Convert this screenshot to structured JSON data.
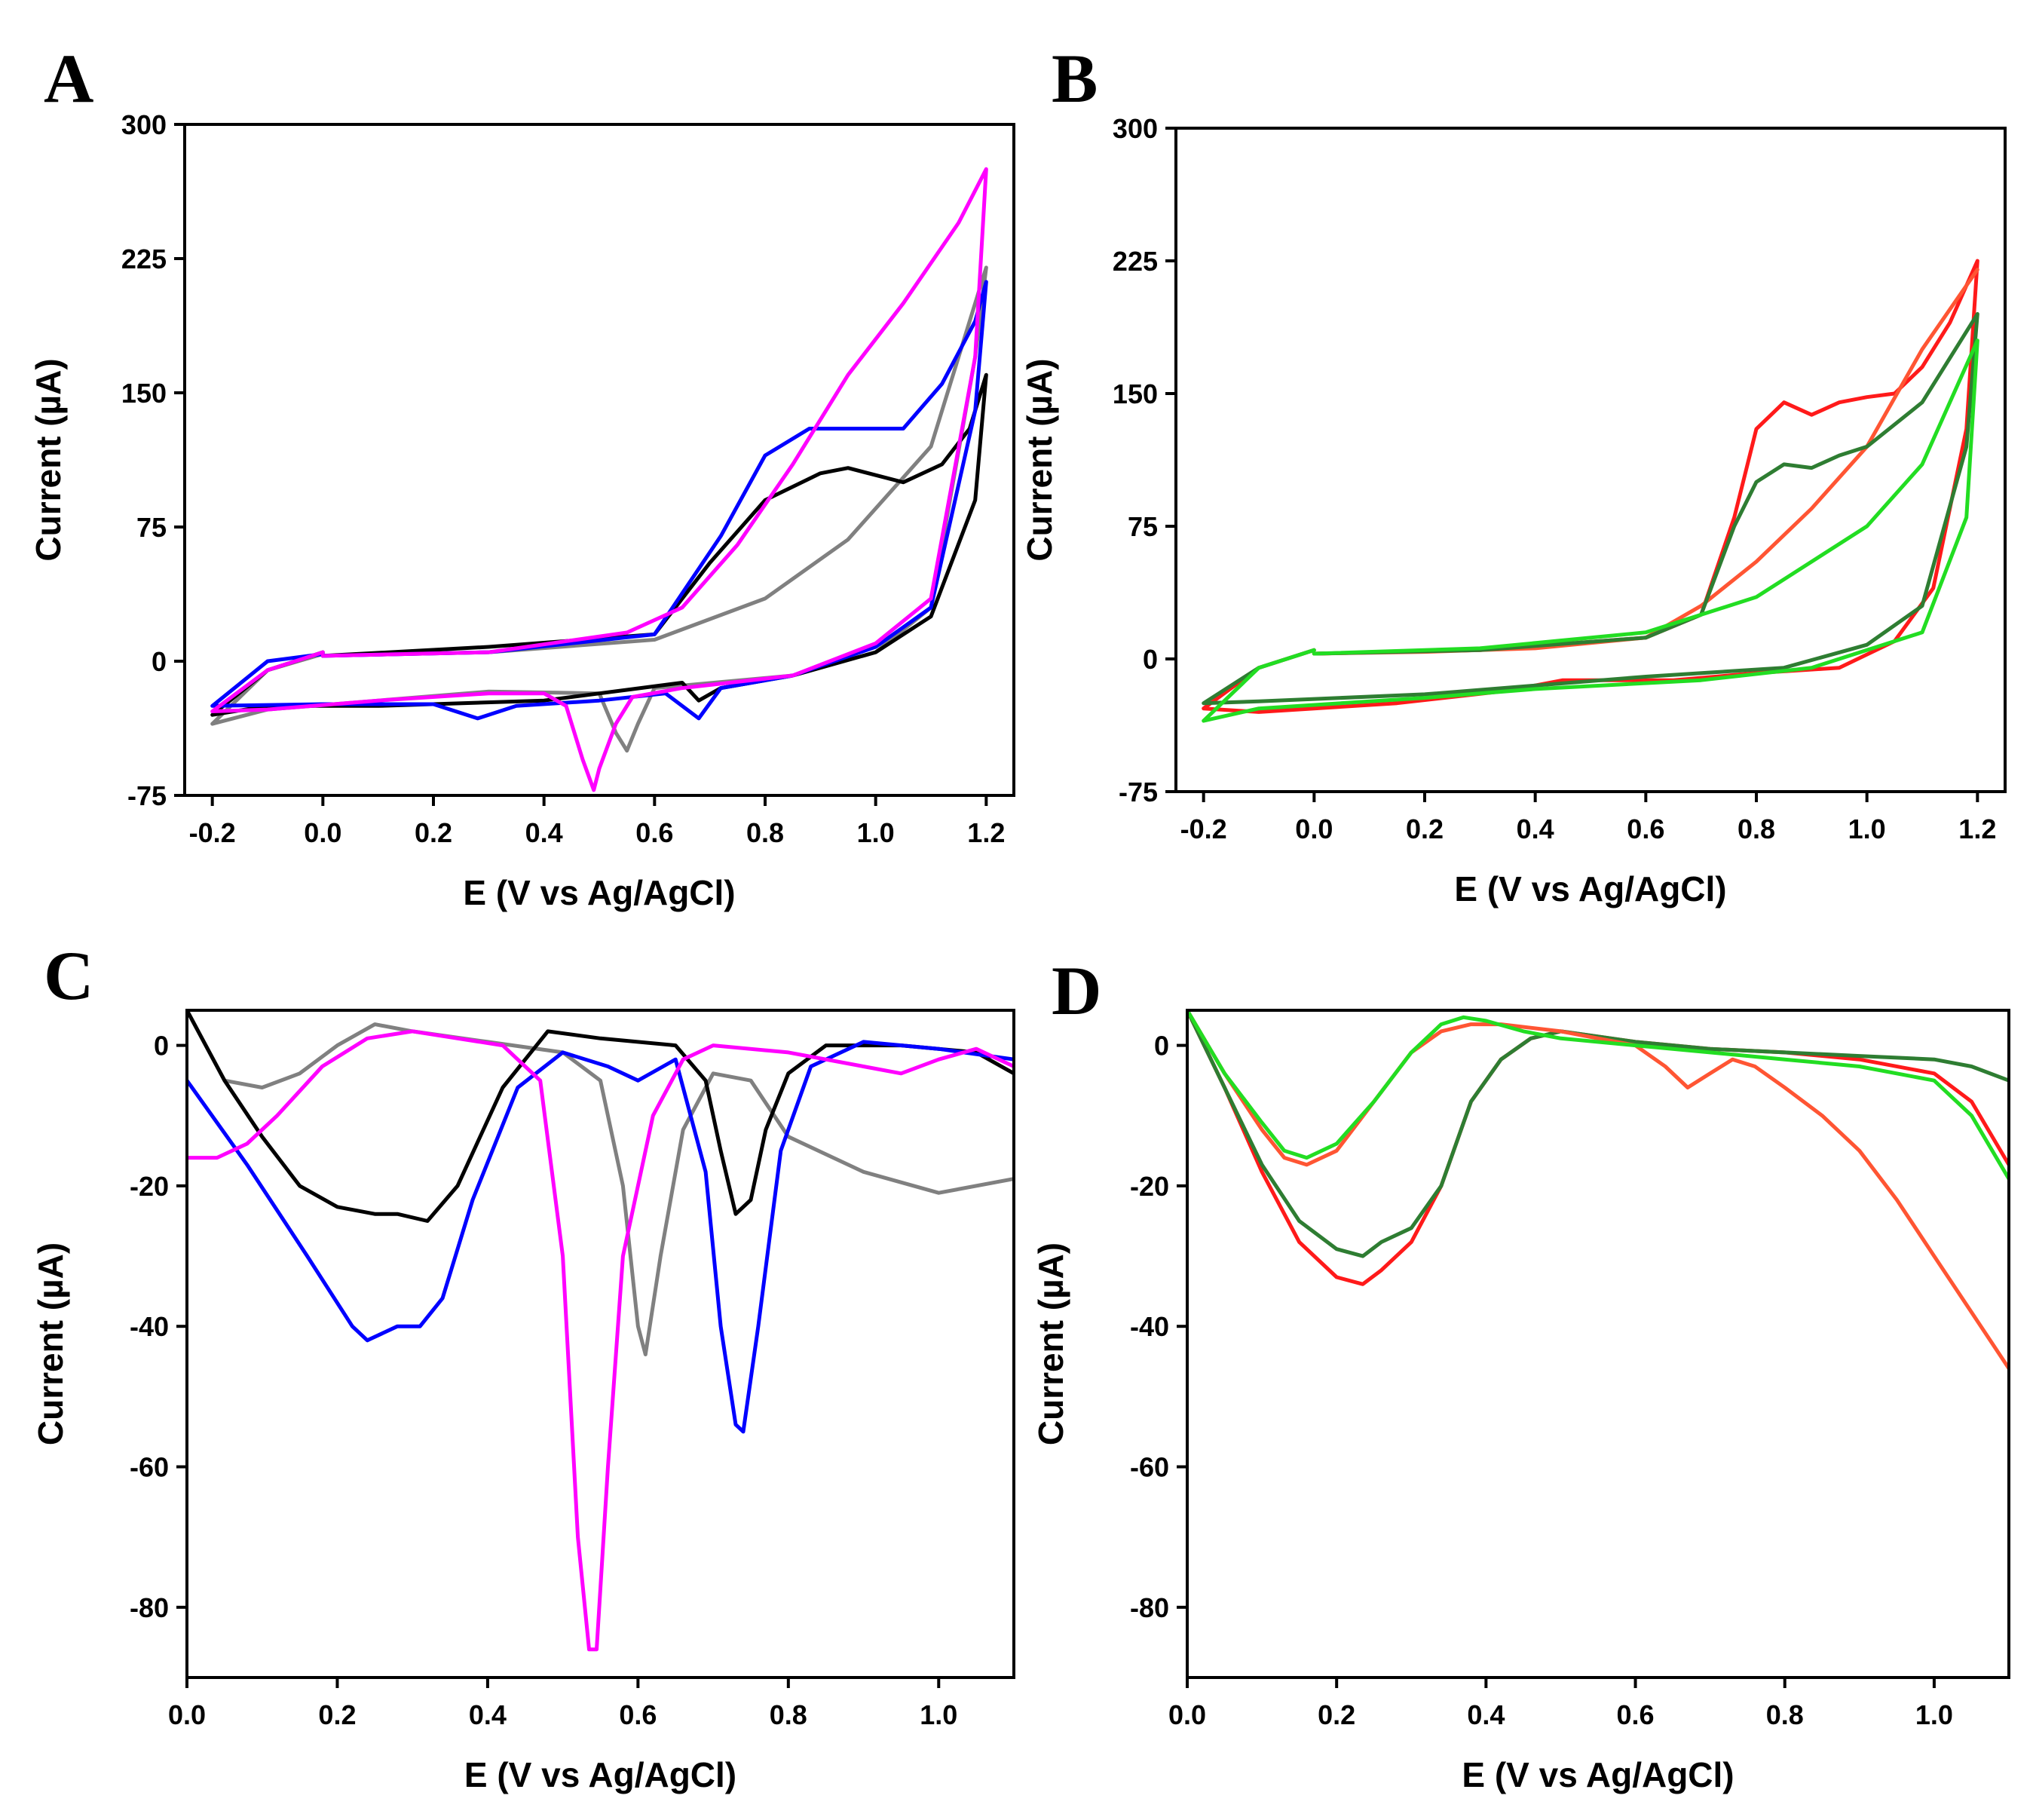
{
  "chart_data": [
    {
      "id": "A",
      "panel_label": "A",
      "type": "line",
      "xlabel": "E (V vs Ag/AgCl)",
      "ylabel": "Current (µA)",
      "xlim": [
        -0.25,
        1.25
      ],
      "ylim": [
        -75,
        300
      ],
      "xticks": [
        -0.2,
        0.0,
        0.2,
        0.4,
        0.6,
        0.8,
        1.0,
        1.2
      ],
      "xtick_labels": [
        "-0.2",
        "0.0",
        "0.2",
        "0.4",
        "0.6",
        "0.8",
        "1.0",
        "1.2"
      ],
      "yticks": [
        -75,
        0,
        75,
        150,
        225,
        300
      ],
      "ytick_labels": [
        "-75",
        "0",
        "75",
        "150",
        "225",
        "300"
      ],
      "series": [
        {
          "name": "gray",
          "color": "#808080",
          "x": [
            0.0,
            0.3,
            0.6,
            0.8,
            0.95,
            1.1,
            1.2,
            1.18,
            1.1,
            1.0,
            0.85,
            0.6,
            0.57,
            0.55,
            0.53,
            0.5,
            0.3,
            0.1,
            -0.1,
            -0.2,
            -0.1,
            0.0
          ],
          "y": [
            3,
            5,
            12,
            35,
            68,
            120,
            220,
            170,
            30,
            5,
            -8,
            -15,
            -35,
            -50,
            -40,
            -18,
            -17,
            -22,
            -27,
            -35,
            -5,
            4
          ]
        },
        {
          "name": "black",
          "color": "#000000",
          "x": [
            0.0,
            0.3,
            0.6,
            0.7,
            0.8,
            0.9,
            0.95,
            1.05,
            1.12,
            1.17,
            1.2,
            1.18,
            1.1,
            1.0,
            0.85,
            0.72,
            0.68,
            0.65,
            0.4,
            0.1,
            -0.1,
            -0.2,
            -0.1,
            0.0
          ],
          "y": [
            3,
            8,
            15,
            55,
            90,
            105,
            108,
            100,
            110,
            130,
            160,
            90,
            25,
            5,
            -8,
            -15,
            -22,
            -12,
            -22,
            -25,
            -25,
            -30,
            -5,
            5
          ]
        },
        {
          "name": "blue",
          "color": "#0000ff",
          "x": [
            0.0,
            0.3,
            0.6,
            0.72,
            0.8,
            0.88,
            0.95,
            1.05,
            1.12,
            1.18,
            1.2,
            1.18,
            1.1,
            1.0,
            0.85,
            0.72,
            0.68,
            0.62,
            0.5,
            0.35,
            0.28,
            0.2,
            0.0,
            -0.2,
            -0.1,
            0.0
          ],
          "y": [
            3,
            5,
            15,
            70,
            115,
            130,
            130,
            130,
            155,
            190,
            212,
            140,
            30,
            8,
            -8,
            -15,
            -32,
            -18,
            -22,
            -25,
            -32,
            -24,
            -24,
            -25,
            0,
            4
          ]
        },
        {
          "name": "magenta",
          "color": "#ff00ff",
          "x": [
            0.0,
            0.3,
            0.55,
            0.65,
            0.75,
            0.85,
            0.95,
            1.05,
            1.15,
            1.2,
            1.18,
            1.1,
            1.0,
            0.85,
            0.65,
            0.56,
            0.53,
            0.5,
            0.49,
            0.47,
            0.44,
            0.4,
            0.3,
            0.1,
            -0.1,
            -0.2,
            -0.1,
            0.0
          ],
          "y": [
            3,
            5,
            16,
            30,
            65,
            110,
            160,
            200,
            245,
            275,
            170,
            35,
            10,
            -8,
            -15,
            -20,
            -35,
            -60,
            -72,
            -55,
            -25,
            -18,
            -18,
            -22,
            -27,
            -28,
            -5,
            5
          ]
        }
      ]
    },
    {
      "id": "B",
      "panel_label": "B",
      "type": "line",
      "xlabel": "E (V vs Ag/AgCl)",
      "ylabel": "Current (µA)",
      "xlim": [
        -0.25,
        1.25
      ],
      "ylim": [
        -75,
        300
      ],
      "xticks": [
        -0.2,
        0.0,
        0.2,
        0.4,
        0.6,
        0.8,
        1.0,
        1.2
      ],
      "xtick_labels": [
        "-0.2",
        "0.0",
        "0.2",
        "0.4",
        "0.6",
        "0.8",
        "1.0",
        "1.2"
      ],
      "yticks": [
        -75,
        0,
        75,
        150,
        225,
        300
      ],
      "ytick_labels": [
        "-75",
        "0",
        "75",
        "150",
        "225",
        "300"
      ],
      "series": [
        {
          "name": "red",
          "color": "#ff1a1a",
          "x": [
            0.0,
            0.3,
            0.6,
            0.7,
            0.76,
            0.8,
            0.85,
            0.9,
            0.95,
            1.0,
            1.05,
            1.1,
            1.15,
            1.2,
            1.18,
            1.12,
            1.05,
            0.95,
            0.8,
            0.65,
            0.55,
            0.45,
            0.35,
            0.15,
            -0.1,
            -0.2,
            -0.1,
            0.0
          ],
          "y": [
            3,
            5,
            12,
            25,
            80,
            130,
            145,
            138,
            145,
            148,
            150,
            165,
            190,
            225,
            130,
            40,
            10,
            -5,
            -8,
            -12,
            -12,
            -12,
            -18,
            -25,
            -30,
            -28,
            -5,
            5
          ]
        },
        {
          "name": "orange-red",
          "color": "#ff5533",
          "x": [
            1.2,
            1.1,
            1.0,
            0.9,
            0.8,
            0.7,
            0.6,
            0.4,
            0.2,
            0.0
          ],
          "y": [
            220,
            175,
            120,
            85,
            55,
            30,
            12,
            6,
            4,
            3
          ]
        },
        {
          "name": "dark-green",
          "color": "#2e7d32",
          "x": [
            0.0,
            0.3,
            0.6,
            0.7,
            0.76,
            0.8,
            0.85,
            0.9,
            0.95,
            1.0,
            1.1,
            1.2,
            1.18,
            1.1,
            1.0,
            0.85,
            0.6,
            0.4,
            0.2,
            -0.1,
            -0.2,
            -0.1,
            0.0
          ],
          "y": [
            3,
            5,
            12,
            25,
            75,
            100,
            110,
            108,
            115,
            120,
            145,
            195,
            120,
            30,
            8,
            -5,
            -10,
            -15,
            -20,
            -24,
            -25,
            -5,
            5
          ]
        },
        {
          "name": "green",
          "color": "#22dd22",
          "x": [
            0.0,
            0.3,
            0.6,
            0.8,
            1.0,
            1.1,
            1.2,
            1.18,
            1.1,
            0.9,
            0.7,
            0.4,
            0.2,
            -0.1,
            -0.2,
            -0.1,
            0.0
          ],
          "y": [
            3,
            6,
            15,
            35,
            75,
            110,
            180,
            80,
            15,
            -5,
            -12,
            -17,
            -22,
            -28,
            -35,
            -5,
            5
          ]
        }
      ]
    },
    {
      "id": "C",
      "panel_label": "C",
      "type": "line",
      "xlabel": "E (V vs Ag/AgCl)",
      "ylabel": "Current (µA)",
      "xlim": [
        0.0,
        1.1
      ],
      "ylim": [
        -90,
        5
      ],
      "xticks": [
        0.0,
        0.2,
        0.4,
        0.6,
        0.8,
        1.0
      ],
      "xtick_labels": [
        "0.0",
        "0.2",
        "0.4",
        "0.6",
        "0.8",
        "1.0"
      ],
      "yticks": [
        0,
        -20,
        -40,
        -60,
        -80
      ],
      "ytick_labels": [
        "0",
        "-20",
        "-40",
        "-60",
        "-80"
      ],
      "series": [
        {
          "name": "gray",
          "color": "#808080",
          "x": [
            0.0,
            0.05,
            0.1,
            0.15,
            0.2,
            0.25,
            0.3,
            0.4,
            0.5,
            0.55,
            0.58,
            0.6,
            0.61,
            0.63,
            0.66,
            0.7,
            0.75,
            0.8,
            0.9,
            1.0,
            1.1
          ],
          "y": [
            5,
            -5,
            -6,
            -4,
            0,
            3,
            2,
            0.5,
            -1,
            -5,
            -20,
            -40,
            -44,
            -30,
            -12,
            -4,
            -5,
            -13,
            -18,
            -21,
            -19
          ]
        },
        {
          "name": "black",
          "color": "#000000",
          "x": [
            0.0,
            0.05,
            0.1,
            0.15,
            0.2,
            0.25,
            0.28,
            0.32,
            0.36,
            0.42,
            0.48,
            0.55,
            0.65,
            0.69,
            0.71,
            0.73,
            0.75,
            0.77,
            0.8,
            0.85,
            0.95,
            1.05,
            1.1
          ],
          "y": [
            5,
            -5,
            -13,
            -20,
            -23,
            -24,
            -24,
            -25,
            -20,
            -6,
            2,
            1,
            0,
            -5,
            -15,
            -24,
            -22,
            -12,
            -4,
            0,
            0,
            -1,
            -4
          ]
        },
        {
          "name": "blue",
          "color": "#0000ff",
          "x": [
            0.0,
            0.08,
            0.16,
            0.22,
            0.24,
            0.28,
            0.31,
            0.34,
            0.38,
            0.44,
            0.5,
            0.56,
            0.6,
            0.65,
            0.69,
            0.71,
            0.73,
            0.74,
            0.76,
            0.79,
            0.83,
            0.9,
            1.0,
            1.1
          ],
          "y": [
            -5,
            -17,
            -30,
            -40,
            -42,
            -40,
            -40,
            -36,
            -22,
            -6,
            -1,
            -3,
            -5,
            -2,
            -18,
            -40,
            -54,
            -55,
            -40,
            -15,
            -3,
            0.5,
            -0.5,
            -2
          ]
        },
        {
          "name": "magenta",
          "color": "#ff00ff",
          "x": [
            0.0,
            0.04,
            0.08,
            0.12,
            0.18,
            0.24,
            0.3,
            0.36,
            0.42,
            0.47,
            0.5,
            0.52,
            0.535,
            0.545,
            0.56,
            0.58,
            0.62,
            0.66,
            0.7,
            0.8,
            0.9,
            0.95,
            1.0,
            1.05,
            1.1
          ],
          "y": [
            -16,
            -16,
            -14,
            -10,
            -3,
            1,
            2,
            1,
            0,
            -5,
            -30,
            -70,
            -86,
            -86,
            -60,
            -30,
            -10,
            -2,
            0,
            -1,
            -3,
            -4,
            -2,
            -0.5,
            -3
          ]
        }
      ]
    },
    {
      "id": "D",
      "panel_label": "D",
      "type": "line",
      "xlabel": "E (V vs Ag/AgCl)",
      "ylabel": "Current (µA)",
      "xlim": [
        0.0,
        1.1
      ],
      "ylim": [
        -90,
        5
      ],
      "xticks": [
        0.0,
        0.2,
        0.4,
        0.6,
        0.8,
        1.0
      ],
      "xtick_labels": [
        "0.0",
        "0.2",
        "0.4",
        "0.6",
        "0.8",
        "1.0"
      ],
      "yticks": [
        0,
        -20,
        -40,
        -60,
        -80
      ],
      "ytick_labels": [
        "0",
        "-20",
        "-40",
        "-60",
        "-80"
      ],
      "series": [
        {
          "name": "red",
          "color": "#ff1a1a",
          "x": [
            0.0,
            0.05,
            0.1,
            0.15,
            0.2,
            0.235,
            0.26,
            0.3,
            0.34,
            0.38,
            0.42,
            0.46,
            0.5,
            0.6,
            0.7,
            0.8,
            0.9,
            1.0,
            1.05,
            1.1
          ],
          "y": [
            5,
            -6,
            -18,
            -28,
            -33,
            -34,
            -32,
            -28,
            -20,
            -8,
            -2,
            1,
            2,
            0.5,
            -0.5,
            -1,
            -2,
            -4,
            -8,
            -17
          ]
        },
        {
          "name": "dark-green",
          "color": "#2e7d32",
          "x": [
            0.0,
            0.05,
            0.1,
            0.15,
            0.2,
            0.235,
            0.26,
            0.3,
            0.34,
            0.38,
            0.42,
            0.46,
            0.5,
            0.6,
            0.7,
            0.8,
            0.9,
            1.0,
            1.05,
            1.1
          ],
          "y": [
            5,
            -6,
            -17,
            -25,
            -29,
            -30,
            -28,
            -26,
            -20,
            -8,
            -2,
            1,
            2,
            0.5,
            -0.5,
            -1,
            -1.5,
            -2,
            -3,
            -5
          ]
        },
        {
          "name": "orange-red",
          "color": "#ff5533",
          "x": [
            0.0,
            0.05,
            0.1,
            0.13,
            0.16,
            0.2,
            0.25,
            0.3,
            0.34,
            0.38,
            0.42,
            0.5,
            0.6,
            0.64,
            0.67,
            0.7,
            0.73,
            0.76,
            0.8,
            0.85,
            0.9,
            0.95,
            1.0,
            1.05,
            1.1
          ],
          "y": [
            5,
            -4,
            -12,
            -16,
            -17,
            -15,
            -8,
            -1,
            2,
            3,
            3,
            2,
            0,
            -3,
            -6,
            -4,
            -2,
            -3,
            -6,
            -10,
            -15,
            -22,
            -30,
            -38,
            -46
          ]
        },
        {
          "name": "green",
          "color": "#22dd22",
          "x": [
            0.0,
            0.05,
            0.1,
            0.13,
            0.16,
            0.2,
            0.25,
            0.3,
            0.34,
            0.37,
            0.4,
            0.45,
            0.5,
            0.6,
            0.7,
            0.8,
            0.9,
            1.0,
            1.05,
            1.1
          ],
          "y": [
            5,
            -4,
            -11,
            -15,
            -16,
            -14,
            -8,
            -1,
            3,
            4,
            3.5,
            2,
            1,
            0,
            -1,
            -2,
            -3,
            -5,
            -10,
            -19
          ]
        }
      ]
    }
  ]
}
